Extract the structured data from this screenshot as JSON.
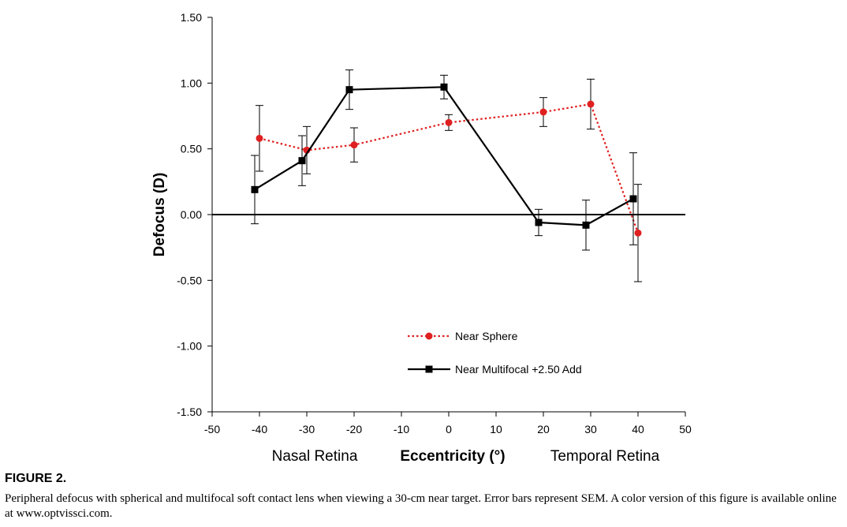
{
  "figure": {
    "label": "FIGURE 2.",
    "caption": "Peripheral defocus with spherical and multifocal soft contact lens when viewing a 30-cm near target. Error bars represent SEM. A color version of this figure is available online at www.optvissci.com."
  },
  "chart_data": {
    "type": "line",
    "xlabel": "Eccentricity (°)",
    "xlabel_left": "Nasal Retina",
    "xlabel_right": "Temporal Retina",
    "ylabel": "Defocus (D)",
    "xlim": [
      -50,
      50
    ],
    "ylim": [
      -1.5,
      1.5
    ],
    "x_ticks": [
      -50,
      -40,
      -30,
      -20,
      -10,
      0,
      10,
      20,
      30,
      40,
      50
    ],
    "y_ticks": [
      -1.5,
      -1.0,
      -0.5,
      0.0,
      0.5,
      1.0,
      1.5
    ],
    "y_tick_labels": [
      "-1.50",
      "-1.00",
      "-0.50",
      "0.00",
      "0.50",
      "1.00",
      "1.50"
    ],
    "legend_position": "lower-center",
    "grid": false,
    "series": [
      {
        "name": "Near Sphere",
        "color": "#e02020",
        "line_style": "dotted",
        "marker": "circle",
        "x": [
          -40,
          -30,
          -20,
          0,
          20,
          30,
          40
        ],
        "y": [
          0.58,
          0.49,
          0.53,
          0.7,
          0.78,
          0.84,
          -0.14
        ],
        "err": [
          0.25,
          0.18,
          0.13,
          0.06,
          0.11,
          0.19,
          0.37
        ]
      },
      {
        "name": "Near Multifocal +2.50 Add",
        "color": "#000000",
        "line_style": "solid",
        "marker": "square",
        "x": [
          -41,
          -31,
          -21,
          -1,
          19,
          29,
          39
        ],
        "y": [
          0.19,
          0.41,
          0.95,
          0.97,
          -0.06,
          -0.08,
          0.12
        ],
        "err": [
          0.26,
          0.19,
          0.15,
          0.09,
          0.1,
          0.19,
          0.35
        ]
      }
    ]
  }
}
